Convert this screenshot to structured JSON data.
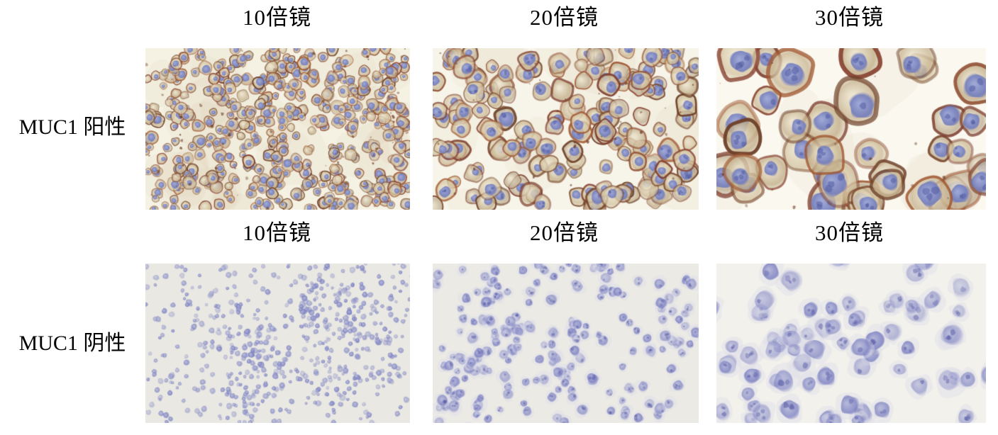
{
  "figure": {
    "title_hidden": "",
    "rows": [
      {
        "label": "MUC1 阳性",
        "stain_type": "positive",
        "panels": [
          {
            "magnification_label": "10倍镜",
            "render": {
              "kind": "positive",
              "seed": 101,
              "bg": "#f5f2e4",
              "count": 430,
              "rmin": 5,
              "rmax": 10,
              "specks": 90,
              "wash": 26
            }
          },
          {
            "magnification_label": "20倍镜",
            "render": {
              "kind": "positive",
              "seed": 202,
              "bg": "#f7f5e9",
              "count": 158,
              "rmin": 9,
              "rmax": 17,
              "specks": 45,
              "wash": 14
            }
          },
          {
            "magnification_label": "30倍镜",
            "render": {
              "kind": "positive",
              "seed": 307,
              "bg": "#faf8ef",
              "count": 40,
              "rmin": 18,
              "rmax": 33,
              "specks": 18,
              "wash": 8
            }
          }
        ]
      },
      {
        "label": "MUC1 阴性",
        "stain_type": "negative",
        "panels": [
          {
            "magnification_label": "10倍镜",
            "render": {
              "kind": "negative",
              "seed": 404,
              "bg": "#e9e8e2",
              "count": 640,
              "rmin": 2.5,
              "rmax": 4.8,
              "clusters": 28,
              "spread": 25,
              "halo": 0
            }
          },
          {
            "magnification_label": "20倍镜",
            "render": {
              "kind": "negative",
              "seed": 505,
              "bg": "#eceae5",
              "count": 215,
              "rmin": 5,
              "rmax": 8.5,
              "clusters": 16,
              "spread": 36,
              "halo": 1
            }
          },
          {
            "magnification_label": "30倍镜",
            "render": {
              "kind": "negative",
              "seed": 606,
              "bg": "#f2f1ec",
              "count": 85,
              "rmin": 9.5,
              "rmax": 16,
              "clusters": 10,
              "spread": 60,
              "halo": 1
            }
          }
        ]
      }
    ],
    "colors": {
      "page_background": "#ffffff",
      "label_text": "#000000",
      "positive_membrane_palette": [
        "#7c4b2f",
        "#8a4533",
        "#6e4028",
        "#94553a",
        "#7d3b2c",
        "#a0562f"
      ],
      "positive_cytoplasm_palette": [
        "#cdbb97",
        "#c2ae89",
        "#d6c6a4",
        "#bfae93",
        "#cab795"
      ],
      "positive_background_tint": "#c9b68d",
      "nucleus_inner": "#9aa4d6",
      "nucleus_outer": "#6b77bd",
      "nucleolus": "#4d58a0",
      "speck_brown": "#6b3a22",
      "negative_nucleus_inner": "#a6a9d4",
      "negative_nucleus_outer": "#797ec0",
      "negative_chromatin": "#5d61a8",
      "negative_halo": "#dcdbe9"
    },
    "layout_note_counts": {
      "rows": 2,
      "panels_per_row": 3
    }
  }
}
